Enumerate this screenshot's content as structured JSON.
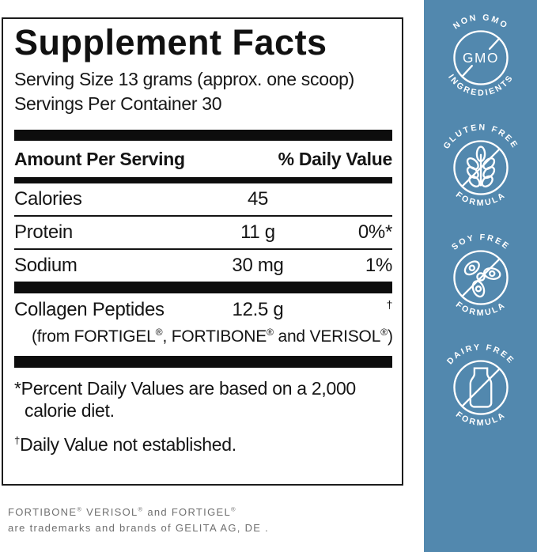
{
  "panel": {
    "title": "Supplement Facts",
    "serving_size": "Serving Size 13 grams (approx. one scoop)",
    "servings_per_container": "Servings Per Container 30",
    "header": {
      "amount_col": "Amount Per Serving",
      "dv_col": "% Daily Value"
    },
    "rows": [
      {
        "name": "Calories",
        "amount": "45",
        "dv": ""
      },
      {
        "name": "Protein",
        "amount": "11 g",
        "dv": "0%*"
      },
      {
        "name": "Sodium",
        "amount": "30 mg",
        "dv": "1%"
      }
    ],
    "collagen_row": {
      "name": "Collagen Peptides",
      "amount": "12.5 g",
      "dv": "†"
    },
    "collagen_source": "(from FORTIGEL®, FORTIBONE® and VERISOL®)",
    "footnote_dv": "*Percent Daily Values are based on a 2,000 calorie diet.",
    "footnote_dagger": "†Daily Value not established."
  },
  "badges": [
    {
      "top": "NON GMO",
      "bottom": "INGREDIENTS",
      "icon": "gmo-icon",
      "center": "GMO"
    },
    {
      "top": "GLUTEN FREE",
      "bottom": "FORMULA",
      "icon": "wheat-icon",
      "center": ""
    },
    {
      "top": "SOY FREE",
      "bottom": "FORMULA",
      "icon": "soy-icon",
      "center": ""
    },
    {
      "top": "DAIRY FREE",
      "bottom": "FORMULA",
      "icon": "milk-bottle-icon",
      "center": ""
    }
  ],
  "footer": {
    "line1": "FORTIBONE® VERISOL® and FORTIGEL®",
    "line2": "are trademarks and brands of GELITA AG, DE ."
  },
  "colors": {
    "sidebar_blue": "#5288AE",
    "bar_black": "#0d0d0d",
    "footer_gray": "#6f6f6f"
  }
}
